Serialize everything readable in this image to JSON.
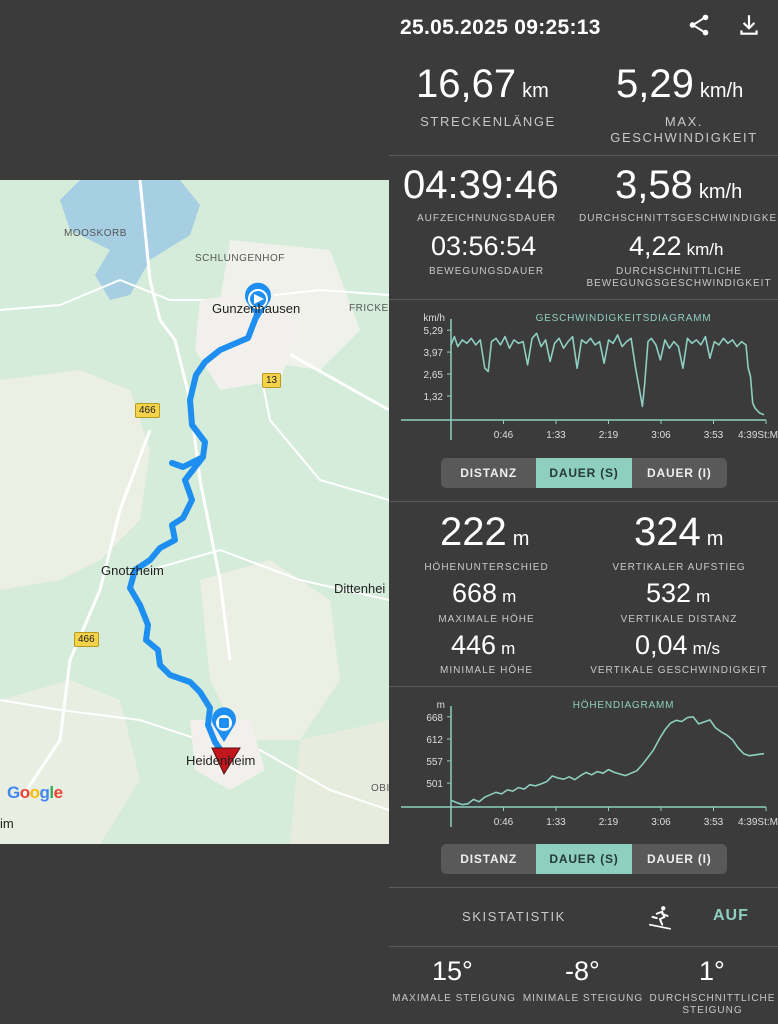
{
  "header": {
    "datetime": "25.05.2025 09:25:13",
    "share_icon": "share-icon",
    "download_icon": "download-icon"
  },
  "stats": {
    "distance": {
      "value": "16,67",
      "unit": "km",
      "label": "STRECKENLÄNGE"
    },
    "max_speed": {
      "value": "5,29",
      "unit": "km/h",
      "label_line1": "MAX.",
      "label_line2": "GESCHWINDIGKEIT"
    },
    "duration": {
      "value": "04:39:46",
      "label": "AUFZEICHNUNGSDAUER"
    },
    "avg_speed": {
      "value": "3,58",
      "unit": "km/h",
      "label": "DURCHSCHNITTSGESCHWINDIGKEIT"
    },
    "moving_duration": {
      "value": "03:56:54",
      "label": "BEWEGUNGSDAUER"
    },
    "avg_moving_speed": {
      "value": "4,22",
      "unit": "km/h",
      "label_line1": "DURCHSCHNITTLICHE",
      "label_line2": "BEWEGUNGSGESCHWINDIGKEIT"
    }
  },
  "speed_chart": {
    "title": "GESCHWINDIGKEITSDIAGRAMM",
    "y_unit": "km/h",
    "y_ticks": [
      "5,29",
      "3,97",
      "2,65",
      "1,32"
    ],
    "x_ticks": [
      "0:46",
      "1:33",
      "2:19",
      "3:06",
      "3:53",
      "4:39St:M"
    ]
  },
  "speed_toggle": {
    "options": [
      "DISTANZ",
      "DAUER (S)",
      "DAUER (I)"
    ],
    "selected": "DAUER (S)"
  },
  "elevation": {
    "diff": {
      "value": "222",
      "unit": "m",
      "label": "HÖHENUNTERSCHIED"
    },
    "ascent": {
      "value": "324",
      "unit": "m",
      "label": "VERTIKALER AUFSTIEG"
    },
    "max": {
      "value": "668",
      "unit": "m",
      "label": "MAXIMALE HÖHE"
    },
    "vdist": {
      "value": "532",
      "unit": "m",
      "label": "VERTIKALE DISTANZ"
    },
    "min": {
      "value": "446",
      "unit": "m",
      "label": "MINIMALE HÖHE"
    },
    "vspeed": {
      "value": "0,04",
      "unit": "m/s",
      "label": "VERTIKALE GESCHWINDIGKEIT"
    }
  },
  "elev_chart": {
    "title": "HÖHENDIAGRAMM",
    "y_unit": "m",
    "y_ticks": [
      "668",
      "612",
      "557",
      "501"
    ],
    "x_ticks": [
      "0:46",
      "1:33",
      "2:19",
      "3:06",
      "3:53",
      "4:39St:M"
    ]
  },
  "elev_toggle": {
    "options": [
      "DISTANZ",
      "DAUER (S)",
      "DAUER (I)"
    ],
    "selected": "DAUER (S)"
  },
  "ski": {
    "label": "SKISTATISTIK",
    "icon": "skier-icon",
    "action": "AUF"
  },
  "slope": {
    "max": {
      "value": "15°",
      "label": "MAXIMALE STEIGUNG"
    },
    "min": {
      "value": "-8°",
      "label": "MINIMALE STEIGUNG"
    },
    "avg": {
      "value": "1°",
      "label_line1": "DURCHSCHNITTLICHE",
      "label_line2": "STEIGUNG"
    }
  },
  "map": {
    "places": [
      "MOOSKORB",
      "SCHLUNGENHOF",
      "FRICKE",
      "Gunzenhausen",
      "Gnotzheim",
      "Dittenhei",
      "Heidenheim",
      "OBI",
      "im"
    ],
    "roads": [
      "466",
      "13",
      "466"
    ],
    "attribution": "Google"
  },
  "colors": {
    "accent": "#8ecfc0",
    "route": "#1e8ff0",
    "end_marker": "#c0161c",
    "background": "#3b3b3b"
  },
  "chart_data": [
    {
      "type": "line",
      "title": "GESCHWINDIGKEITSDIAGRAMM",
      "ylabel": "km/h",
      "y_ticks": [
        5.29,
        3.97,
        2.65,
        1.32
      ],
      "ylim": [
        0,
        5.6
      ],
      "x_ticks": [
        "0:46",
        "1:33",
        "2:19",
        "3:06",
        "3:53",
        "4:39"
      ],
      "x_unit": "St:M",
      "xlim": [
        0,
        279.8
      ],
      "x_minutes": [
        0,
        3,
        6,
        10,
        14,
        18,
        22,
        26,
        30,
        33,
        36,
        40,
        44,
        48,
        52,
        56,
        60,
        64,
        68,
        72,
        76,
        80,
        84,
        88,
        92,
        96,
        100,
        104,
        108,
        112,
        116,
        120,
        124,
        128,
        132,
        136,
        140,
        144,
        148,
        152,
        156,
        160,
        164,
        168,
        170,
        172,
        175,
        178,
        182,
        186,
        190,
        194,
        198,
        202,
        206,
        210,
        214,
        218,
        222,
        226,
        230,
        234,
        238,
        242,
        246,
        250,
        254,
        258,
        262,
        264,
        266,
        268,
        270,
        274,
        278
      ],
      "values": [
        4.4,
        4.9,
        4.3,
        4.7,
        4.5,
        4.8,
        4.4,
        4.7,
        3.0,
        2.8,
        4.6,
        4.8,
        4.4,
        4.9,
        4.2,
        4.7,
        4.5,
        4.6,
        3.2,
        4.8,
        5.1,
        4.3,
        4.7,
        3.4,
        4.5,
        4.8,
        4.2,
        4.6,
        4.9,
        3.0,
        4.7,
        4.5,
        4.8,
        4.4,
        4.6,
        3.3,
        4.7,
        4.5,
        5.0,
        4.3,
        4.6,
        4.8,
        3.0,
        1.5,
        0.7,
        2.0,
        4.6,
        4.8,
        4.4,
        3.5,
        4.7,
        4.2,
        4.6,
        4.3,
        3.0,
        4.8,
        4.5,
        4.7,
        4.4,
        4.9,
        3.6,
        4.6,
        4.4,
        4.8,
        4.5,
        4.7,
        4.3,
        4.6,
        4.4,
        3.0,
        2.5,
        0.9,
        0.6,
        0.3,
        0.2
      ]
    },
    {
      "type": "line",
      "title": "HÖHENDIAGRAMM",
      "ylabel": "m",
      "y_ticks": [
        668,
        612,
        557,
        501
      ],
      "ylim": [
        446,
        680
      ],
      "x_ticks": [
        "0:46",
        "1:33",
        "2:19",
        "3:06",
        "3:53",
        "4:39"
      ],
      "x_unit": "St:M",
      "xlim": [
        0,
        279.8
      ],
      "x_minutes": [
        0,
        5,
        10,
        15,
        20,
        25,
        30,
        35,
        40,
        45,
        50,
        55,
        60,
        65,
        70,
        75,
        80,
        85,
        90,
        95,
        100,
        105,
        110,
        115,
        120,
        125,
        130,
        135,
        140,
        145,
        150,
        155,
        160,
        165,
        170,
        175,
        180,
        185,
        190,
        195,
        200,
        205,
        210,
        215,
        220,
        225,
        230,
        235,
        240,
        245,
        250,
        255,
        260,
        265,
        270,
        275,
        278
      ],
      "values": [
        458,
        452,
        447,
        449,
        460,
        454,
        466,
        472,
        478,
        474,
        484,
        481,
        490,
        486,
        497,
        494,
        499,
        505,
        519,
        514,
        511,
        517,
        510,
        520,
        528,
        522,
        530,
        526,
        535,
        528,
        524,
        520,
        526,
        532,
        548,
        566,
        585,
        612,
        635,
        652,
        659,
        656,
        666,
        668,
        650,
        655,
        660,
        640,
        630,
        622,
        610,
        590,
        575,
        570,
        572,
        574,
        575
      ]
    }
  ]
}
